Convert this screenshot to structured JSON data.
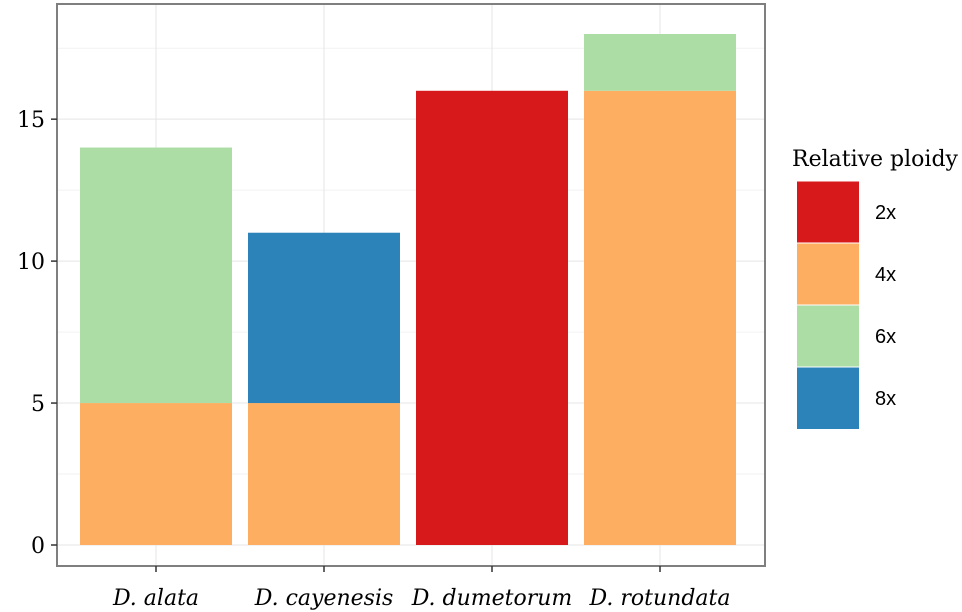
{
  "chart_data": {
    "type": "bar",
    "stacked": true,
    "categories": [
      "D. alata",
      "D. cayenesis",
      "D. dumetorum",
      "D. rotundata"
    ],
    "series": [
      {
        "name": "2x",
        "color": "#d7191c",
        "values": [
          0,
          0,
          16,
          0
        ]
      },
      {
        "name": "4x",
        "color": "#fdae61",
        "values": [
          5,
          5,
          0,
          16
        ]
      },
      {
        "name": "6x",
        "color": "#abdda4",
        "values": [
          9,
          0,
          0,
          2
        ]
      },
      {
        "name": "8x",
        "color": "#2b83ba",
        "values": [
          0,
          6,
          0,
          0
        ]
      }
    ],
    "ylim": [
      0,
      18
    ],
    "yticks": [
      0,
      5,
      10,
      15
    ],
    "grid": true,
    "legend": {
      "title": "Relative ploidy",
      "position": "right"
    }
  }
}
